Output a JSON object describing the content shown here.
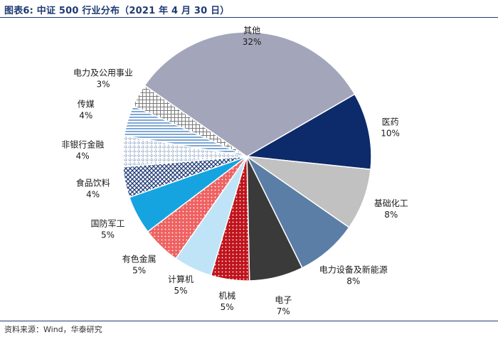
{
  "chart_data": {
    "type": "pie",
    "title": "图表6:  中证 500 行业分布（2021 年 4 月 30 日）",
    "source": "资料来源：Wind，华泰研究",
    "slices": [
      {
        "name": "医药",
        "value": 10,
        "label": "10%",
        "color": "#0d2b6b",
        "pattern": "solid"
      },
      {
        "name": "基础化工",
        "value": 8,
        "label": "8%",
        "color": "#c1c1c1",
        "pattern": "solid"
      },
      {
        "name": "电力设备及新能源",
        "value": 8,
        "label": "8%",
        "color": "#5b7ea6",
        "pattern": "solid"
      },
      {
        "name": "电子",
        "value": 7,
        "label": "7%",
        "color": "#3a3a3a",
        "pattern": "solid"
      },
      {
        "name": "机械",
        "value": 5,
        "label": "5%",
        "color": "#c0141c",
        "pattern": "dots"
      },
      {
        "name": "计算机",
        "value": 5,
        "label": "5%",
        "color": "#bfe4f7",
        "pattern": "solid"
      },
      {
        "name": "有色金属",
        "value": 5,
        "label": "5%",
        "color": "#ef6262",
        "pattern": "dots"
      },
      {
        "name": "国防军工",
        "value": 5,
        "label": "5%",
        "color": "#16a4e0",
        "pattern": "solid"
      },
      {
        "name": "食品饮料",
        "value": 4,
        "label": "4%",
        "color": "#1f3a73",
        "pattern": "diagcross"
      },
      {
        "name": "非银行金融",
        "value": 4,
        "label": "4%",
        "color": "#8aa0bf",
        "pattern": "dashgrid"
      },
      {
        "name": "传媒",
        "value": 4,
        "label": "4%",
        "color": "#7fa8d6",
        "pattern": "hstripes"
      },
      {
        "name": "电力及公用事业",
        "value": 3,
        "label": "3%",
        "color": "#7a7a7a",
        "pattern": "grid"
      },
      {
        "name": "其他",
        "value": 32,
        "label": "32%",
        "color": "#a3a6ba",
        "pattern": "solid"
      }
    ],
    "legend": "none"
  }
}
